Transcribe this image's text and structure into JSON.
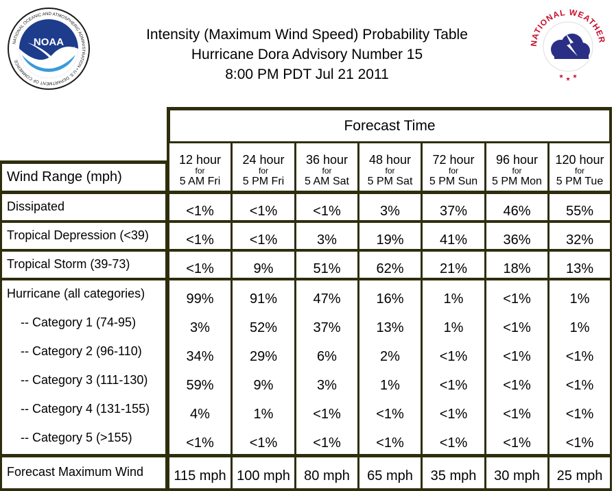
{
  "header": {
    "title_line1": "Intensity (Maximum Wind Speed) Probability Table",
    "title_line2": "Hurricane Dora Advisory Number 15",
    "title_line3": "8:00 PM PDT Jul 21 2011",
    "noaa_logo": {
      "text": "NOAA",
      "ring_text": "NATIONAL OCEANIC AND ATMOSPHERIC ADMINISTRATION • U.S. DEPARTMENT OF COMMERCE"
    },
    "nws_logo": {
      "ring_text": "NATIONAL WEATHER SERVICE"
    }
  },
  "table": {
    "forecast_time_label": "Forecast Time",
    "row_header_label": "Wind Range (mph)",
    "columns": [
      {
        "hour": "12 hour",
        "for": "for",
        "time": "5 AM Fri"
      },
      {
        "hour": "24 hour",
        "for": "for",
        "time": "5 PM Fri"
      },
      {
        "hour": "36 hour",
        "for": "for",
        "time": "5 AM Sat"
      },
      {
        "hour": "48 hour",
        "for": "for",
        "time": "5 PM Sat"
      },
      {
        "hour": "72 hour",
        "for": "for",
        "time": "5 PM Sun"
      },
      {
        "hour": "96 hour",
        "for": "for",
        "time": "5 PM Mon"
      },
      {
        "hour": "120 hour",
        "for": "for",
        "time": "5 PM Tue"
      }
    ],
    "rows": [
      {
        "label": "Dissipated",
        "values": [
          "<1%",
          "<1%",
          "<1%",
          "3%",
          "37%",
          "46%",
          "55%"
        ]
      },
      {
        "label": "Tropical Depression (<39)",
        "values": [
          "<1%",
          "<1%",
          "3%",
          "19%",
          "41%",
          "36%",
          "32%"
        ]
      },
      {
        "label": "Tropical Storm (39-73)",
        "values": [
          "<1%",
          "9%",
          "51%",
          "62%",
          "21%",
          "18%",
          "13%"
        ]
      }
    ],
    "hurricane_rows": [
      {
        "label": "Hurricane (all categories)",
        "values": [
          "99%",
          "91%",
          "47%",
          "16%",
          "1%",
          "<1%",
          "1%"
        ]
      },
      {
        "label": "-- Category 1 (74-95)",
        "values": [
          "3%",
          "52%",
          "37%",
          "13%",
          "1%",
          "<1%",
          "1%"
        ]
      },
      {
        "label": "-- Category 2 (96-110)",
        "values": [
          "34%",
          "29%",
          "6%",
          "2%",
          "<1%",
          "<1%",
          "<1%"
        ]
      },
      {
        "label": "-- Category 3 (111-130)",
        "values": [
          "59%",
          "9%",
          "3%",
          "1%",
          "<1%",
          "<1%",
          "<1%"
        ]
      },
      {
        "label": "-- Category 4 (131-155)",
        "values": [
          "4%",
          "1%",
          "<1%",
          "<1%",
          "<1%",
          "<1%",
          "<1%"
        ]
      },
      {
        "label": "-- Category 5 (>155)",
        "values": [
          "<1%",
          "<1%",
          "<1%",
          "<1%",
          "<1%",
          "<1%",
          "<1%"
        ]
      }
    ],
    "max_wind_row": {
      "label": "Forecast Maximum Wind",
      "values": [
        "115 mph",
        "100 mph",
        "80 mph",
        "65 mph",
        "35 mph",
        "30 mph",
        "25 mph"
      ]
    }
  }
}
